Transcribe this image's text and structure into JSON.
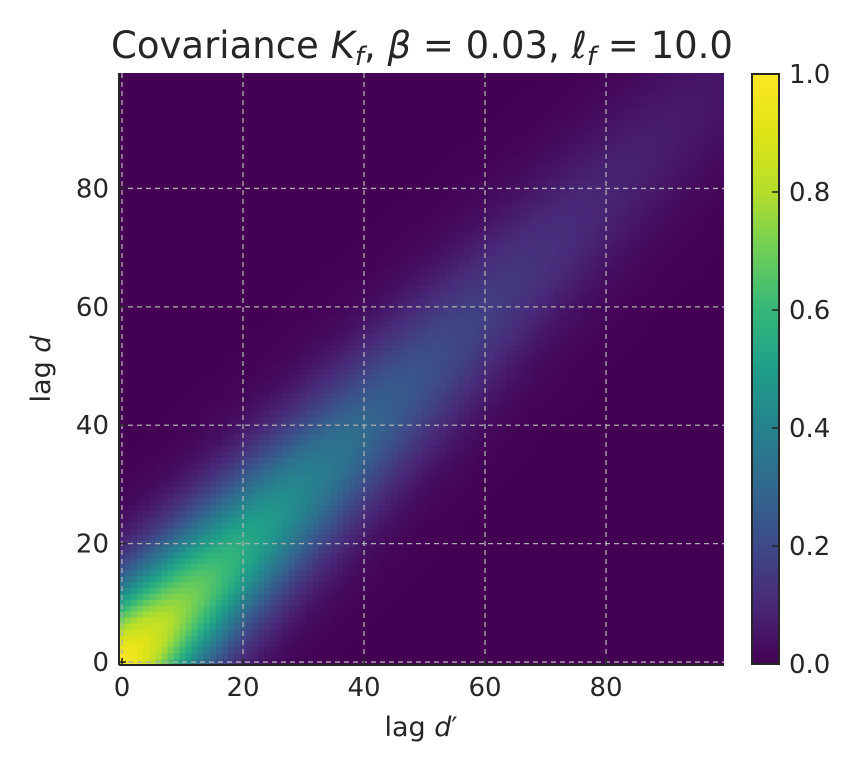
{
  "chart_data": {
    "type": "heatmap",
    "title_parts": {
      "prefix": "Covariance ",
      "K": "K",
      "K_sub": "f",
      "sep1": ", ",
      "beta": "β",
      "eq1": " = 0.03",
      "sep2": ", ",
      "ell": "ℓ",
      "ell_sub": "f",
      "eq2": " = 10.0"
    },
    "xlabel_parts": {
      "text": "lag ",
      "var": "d",
      "prime": "′"
    },
    "ylabel_parts": {
      "text": "lag ",
      "var": "d"
    },
    "beta": 0.03,
    "ell_f": 10.0,
    "grid_size": 100,
    "xlim": [
      0,
      99
    ],
    "ylim": [
      0,
      99
    ],
    "x_ticks": [
      0,
      20,
      40,
      60,
      80
    ],
    "y_ticks": [
      0,
      20,
      40,
      60,
      80
    ],
    "colorbar": {
      "range": [
        0.0,
        1.0
      ],
      "ticks": [
        "0.0",
        "0.2",
        "0.4",
        "0.6",
        "0.8",
        "1.0"
      ],
      "colormap": "viridis"
    },
    "grid": true,
    "sample_values": [
      {
        "d": 0,
        "d_prime": 0,
        "value": 1.0
      },
      {
        "d": 10,
        "d_prime": 10,
        "value": 0.74
      },
      {
        "d": 20,
        "d_prime": 20,
        "value": 0.55
      },
      {
        "d": 40,
        "d_prime": 40,
        "value": 0.3
      },
      {
        "d": 60,
        "d_prime": 60,
        "value": 0.17
      },
      {
        "d": 80,
        "d_prime": 80,
        "value": 0.09
      },
      {
        "d": 0,
        "d_prime": 60,
        "value": 0.0
      },
      {
        "d": 80,
        "d_prime": 20,
        "value": 0.05
      }
    ]
  },
  "colors": {
    "grid": "#b0b0b0",
    "axis": "#262626"
  }
}
